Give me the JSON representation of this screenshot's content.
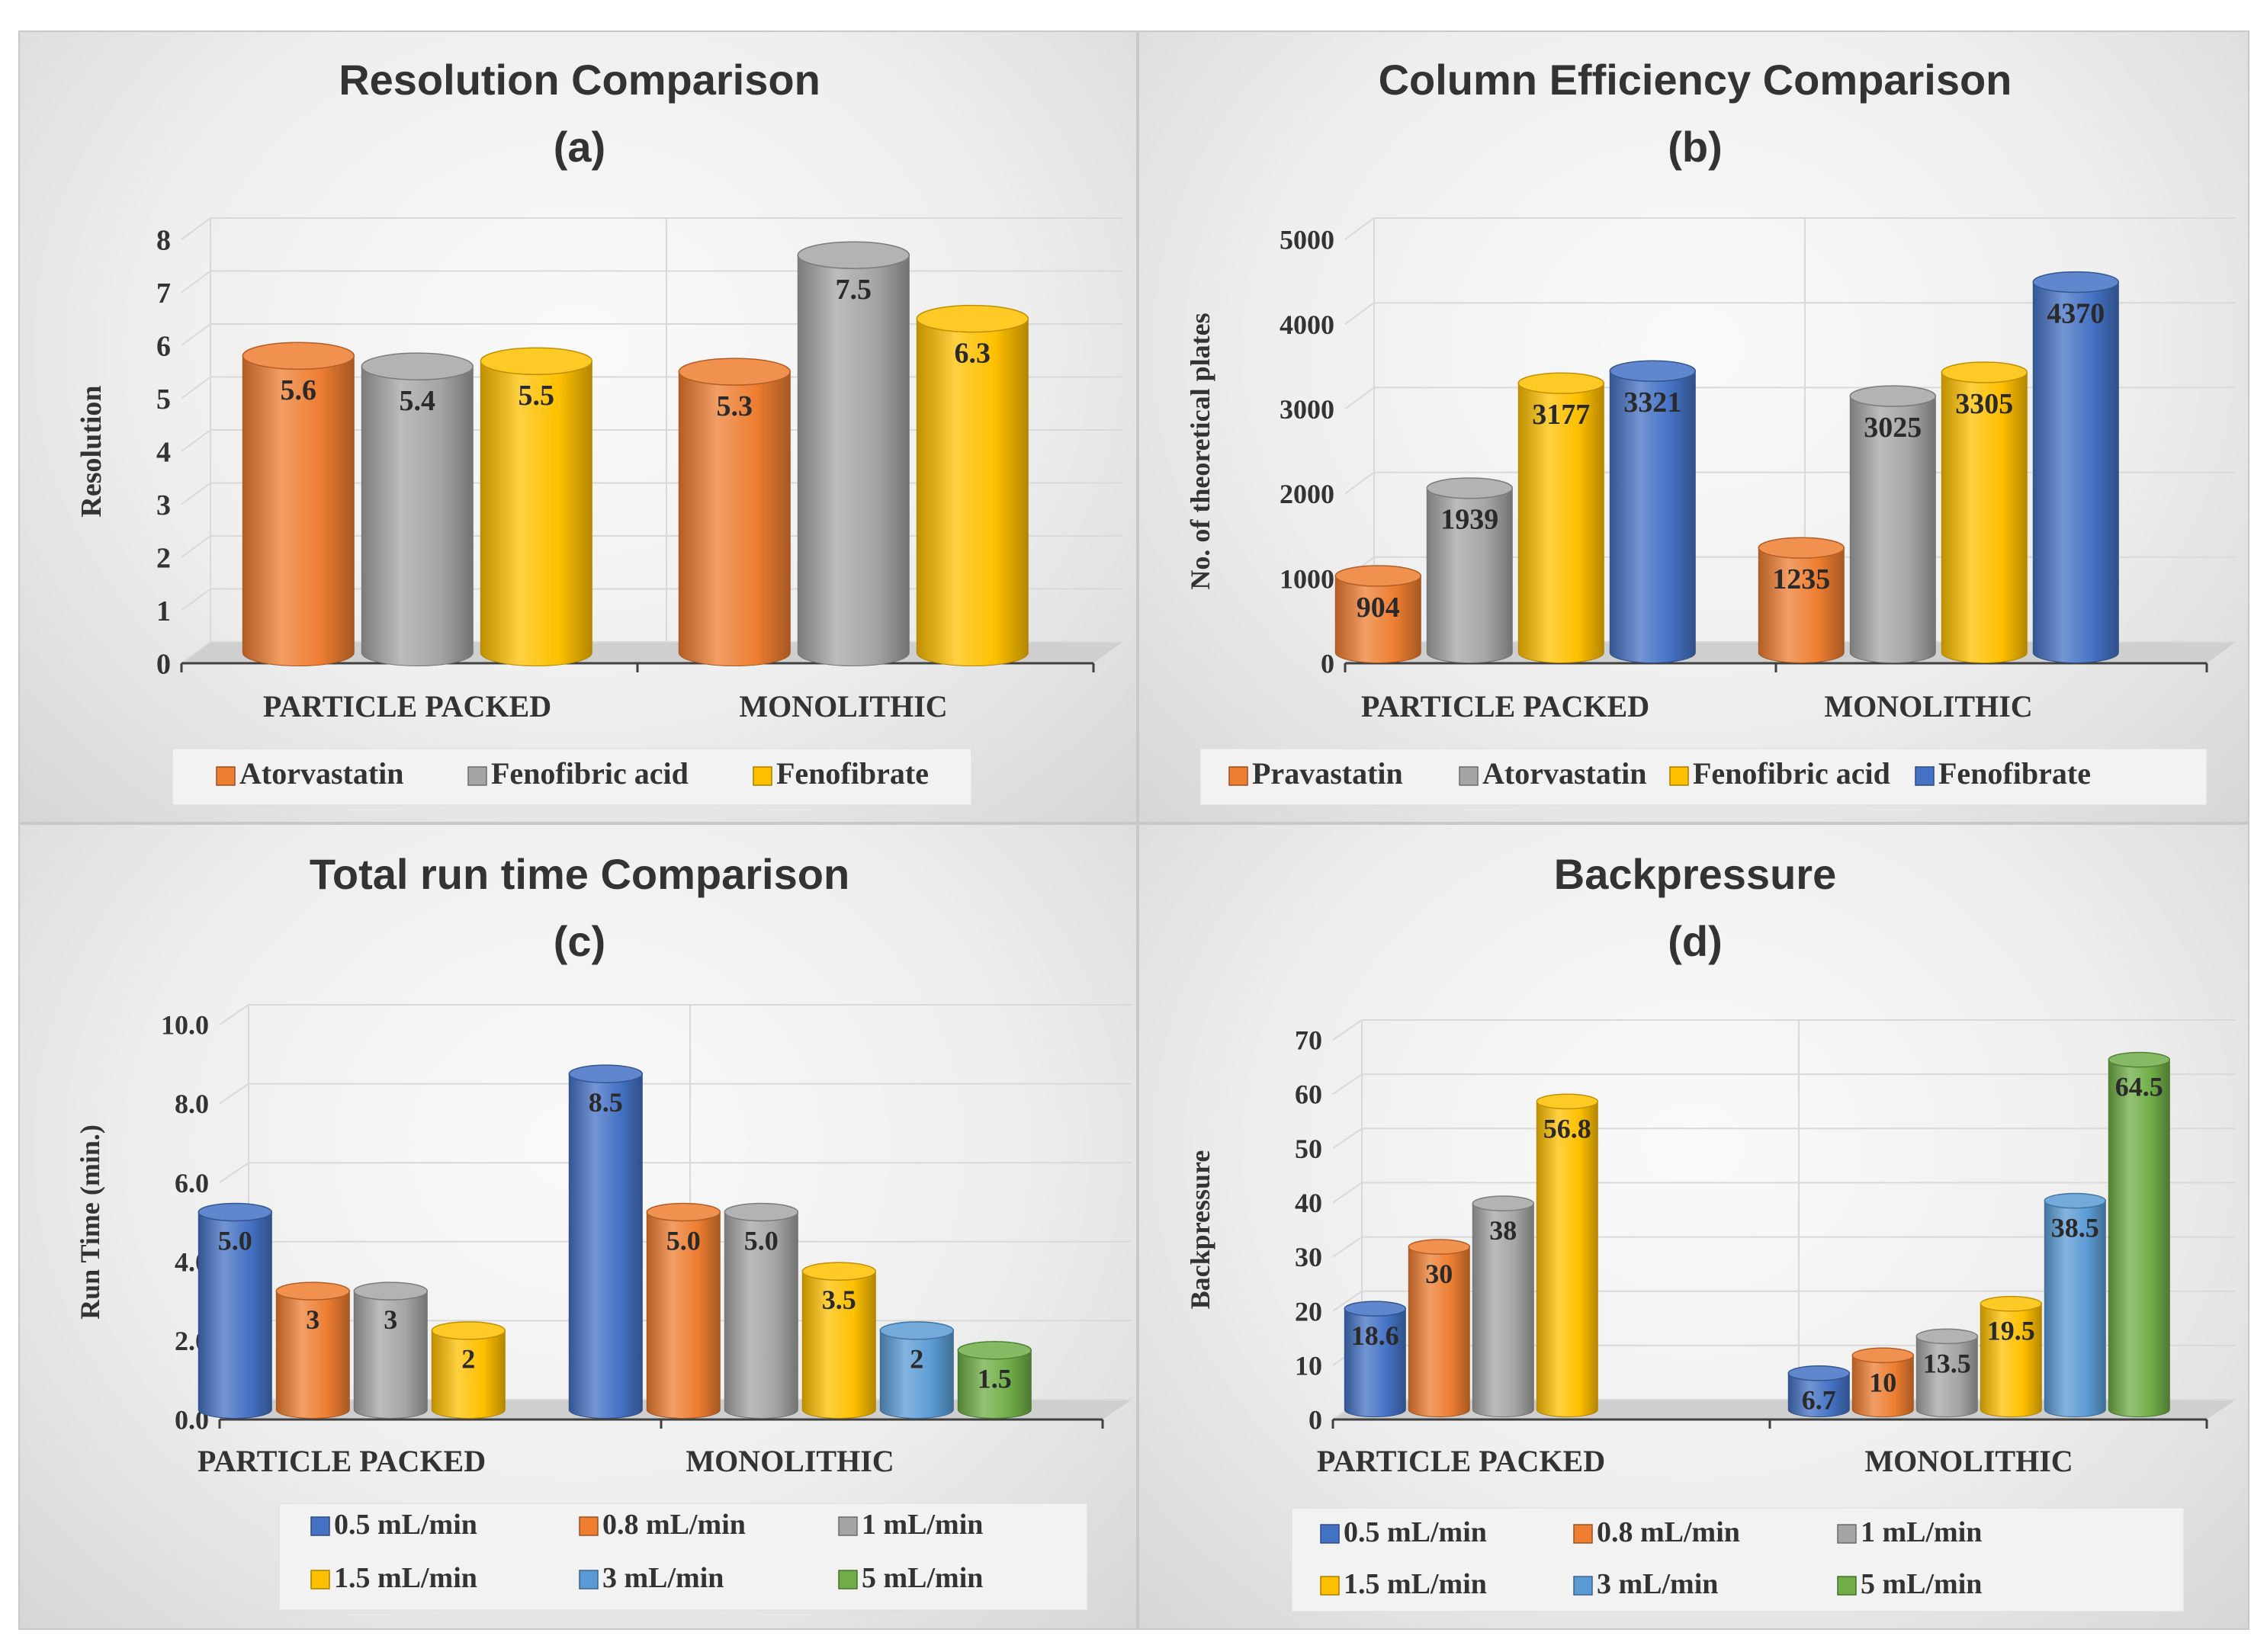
{
  "colors": {
    "orange": "#ED7D31",
    "gray": "#A5A5A5",
    "yellow": "#FFC000",
    "blue": "#4472C4",
    "lightblue": "#5B9BD5",
    "green": "#70AD47"
  },
  "chart_data": [
    {
      "type": "bar",
      "title": "Resolution Comparison",
      "subtitle": "(a)",
      "xlabel": "",
      "ylabel": "Resolution",
      "ylim": [
        0,
        8
      ],
      "yticks": [
        "0",
        "1",
        "2",
        "3",
        "4",
        "5",
        "6",
        "7",
        "8"
      ],
      "categories": [
        "PARTICLE PACKED",
        "MONOLITHIC"
      ],
      "series": [
        {
          "name": "Atorvastatin",
          "color": "orange",
          "values": [
            5.6,
            5.3
          ],
          "labels": [
            "5.6",
            "5.3"
          ]
        },
        {
          "name": "Fenofibric acid",
          "color": "gray",
          "values": [
            5.4,
            7.5
          ],
          "labels": [
            "5.4",
            "7.5"
          ]
        },
        {
          "name": "Fenofibrate",
          "color": "yellow",
          "values": [
            5.5,
            6.3
          ],
          "labels": [
            "5.5",
            "6.3"
          ]
        }
      ],
      "legend_position": "bottom"
    },
    {
      "type": "bar",
      "title": "Column Efficiency Comparison",
      "subtitle": "(b)",
      "xlabel": "",
      "ylabel": "No. of theoretical plates",
      "ylim": [
        0,
        5000
      ],
      "yticks": [
        "0",
        "1000",
        "2000",
        "3000",
        "4000",
        "5000"
      ],
      "categories": [
        "PARTICLE PACKED",
        "MONOLITHIC"
      ],
      "series": [
        {
          "name": "Pravastatin",
          "color": "orange",
          "values": [
            904,
            1235
          ],
          "labels": [
            "904",
            "1235"
          ]
        },
        {
          "name": "Atorvastatin",
          "color": "gray",
          "values": [
            1939,
            3025
          ],
          "labels": [
            "1939",
            "3025"
          ]
        },
        {
          "name": "Fenofibric acid",
          "color": "yellow",
          "values": [
            3177,
            3305
          ],
          "labels": [
            "3177",
            "3305"
          ]
        },
        {
          "name": "Fenofibrate",
          "color": "blue",
          "values": [
            3321,
            4370
          ],
          "labels": [
            "3321",
            "4370"
          ]
        }
      ],
      "legend_position": "bottom"
    },
    {
      "type": "bar",
      "title": "Total run time Comparison",
      "subtitle": "(c)",
      "xlabel": "",
      "ylabel": "Run Time (min.)",
      "ylim": [
        0,
        10
      ],
      "yticks": [
        "0.0",
        "2.0",
        "4.0",
        "6.0",
        "8.0",
        "10.0"
      ],
      "categories": [
        "PARTICLE PACKED",
        "MONOLITHIC"
      ],
      "series": [
        {
          "name": "0.5 mL/min",
          "color": "blue",
          "values": [
            5.0,
            8.5
          ],
          "labels": [
            "5.0",
            "8.5"
          ]
        },
        {
          "name": "0.8 mL/min",
          "color": "orange",
          "values": [
            3,
            5.0
          ],
          "labels": [
            "3",
            "5.0"
          ]
        },
        {
          "name": "1 mL/min",
          "color": "gray",
          "values": [
            3,
            5.0
          ],
          "labels": [
            "3",
            "5.0"
          ]
        },
        {
          "name": "1.5 mL/min",
          "color": "yellow",
          "values": [
            2,
            3.5
          ],
          "labels": [
            "2",
            "3.5"
          ]
        },
        {
          "name": "3 mL/min",
          "color": "lightblue",
          "values": [
            null,
            2
          ],
          "labels": [
            null,
            "2"
          ]
        },
        {
          "name": "5 mL/min",
          "color": "green",
          "values": [
            null,
            1.5
          ],
          "labels": [
            null,
            "1.5"
          ]
        }
      ],
      "legend_position": "bottom"
    },
    {
      "type": "bar",
      "title": "Backpressure",
      "subtitle": "(d)",
      "xlabel": "",
      "ylabel": "Backpressure",
      "ylim": [
        0,
        70
      ],
      "yticks": [
        "0",
        "10",
        "20",
        "30",
        "40",
        "50",
        "60",
        "70"
      ],
      "categories": [
        "PARTICLE PACKED",
        "MONOLITHIC"
      ],
      "series": [
        {
          "name": "0.5 mL/min",
          "color": "blue",
          "values": [
            18.6,
            6.7
          ],
          "labels": [
            "18.6",
            "6.7"
          ]
        },
        {
          "name": "0.8 mL/min",
          "color": "orange",
          "values": [
            30,
            10
          ],
          "labels": [
            "30",
            "10"
          ]
        },
        {
          "name": "1 mL/min",
          "color": "gray",
          "values": [
            38,
            13.5
          ],
          "labels": [
            "38",
            "13.5"
          ]
        },
        {
          "name": "1.5 mL/min",
          "color": "yellow",
          "values": [
            56.8,
            19.5
          ],
          "labels": [
            "56.8",
            "19.5"
          ]
        },
        {
          "name": "3 mL/min",
          "color": "lightblue",
          "values": [
            null,
            38.5
          ],
          "labels": [
            null,
            "38.5"
          ]
        },
        {
          "name": "5 mL/min",
          "color": "green",
          "values": [
            null,
            64.5
          ],
          "labels": [
            null,
            "64.5"
          ]
        }
      ],
      "legend_position": "bottom"
    }
  ]
}
